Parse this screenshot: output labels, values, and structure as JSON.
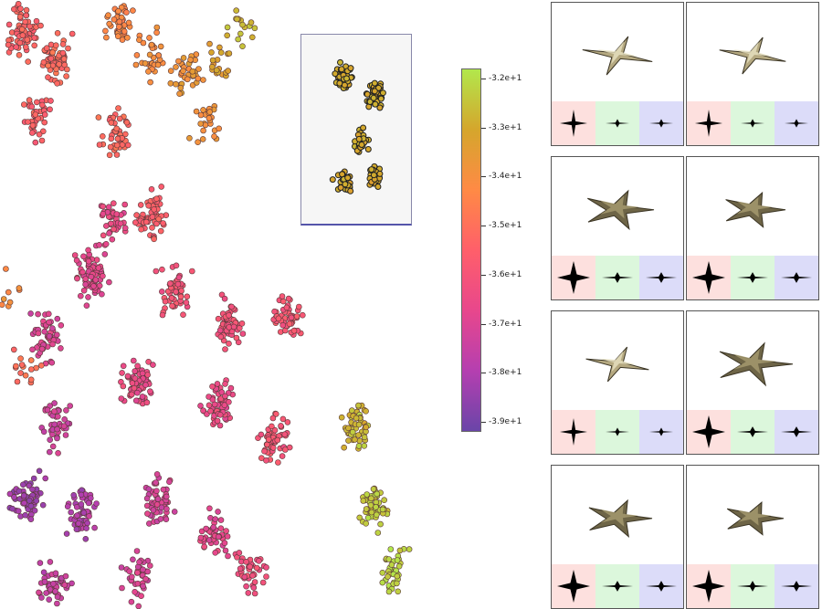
{
  "chart_data": {
    "type": "scatter",
    "title": "",
    "xlabel": "",
    "ylabel": "",
    "colorbar": {
      "min": -39.2,
      "max": -31.8,
      "ticks": [
        -32,
        -33,
        -34,
        -35,
        -36,
        -37,
        -38,
        -39
      ],
      "tick_labels": [
        "-3.2e+1",
        "-3.3e+1",
        "-3.4e+1",
        "-3.5e+1",
        "-3.6e+1",
        "-3.7e+1",
        "-3.8e+1",
        "-3.9e+1"
      ],
      "colormap": [
        "#6a45a8",
        "#b53fb0",
        "#e8478c",
        "#ff5f6a",
        "#ff8a45",
        "#d5a62c",
        "#b2e84c"
      ]
    },
    "clusters": [
      {
        "x": 5,
        "y": 95,
        "value": -35.4,
        "n": 70
      },
      {
        "x": 12,
        "y": 90,
        "value": -35.1,
        "n": 60
      },
      {
        "x": 26,
        "y": 96,
        "value": -34.2,
        "n": 45
      },
      {
        "x": 33,
        "y": 91,
        "value": -34.1,
        "n": 35
      },
      {
        "x": 41,
        "y": 88,
        "value": -33.7,
        "n": 40
      },
      {
        "x": 48,
        "y": 90,
        "value": -33.2,
        "n": 20
      },
      {
        "x": 53,
        "y": 96,
        "value": -32.6,
        "n": 15
      },
      {
        "x": 45,
        "y": 80,
        "value": -33.9,
        "n": 25
      },
      {
        "x": 8,
        "y": 80,
        "value": -35.5,
        "n": 40
      },
      {
        "x": 25,
        "y": 78,
        "value": -35.2,
        "n": 45
      },
      {
        "x": 33,
        "y": 65,
        "value": -35.6,
        "n": 65
      },
      {
        "x": 24,
        "y": 64,
        "value": -36.6,
        "n": 40
      },
      {
        "x": 20,
        "y": 55,
        "value": -36.8,
        "n": 70
      },
      {
        "x": 38,
        "y": 52,
        "value": -36.0,
        "n": 50
      },
      {
        "x": 63,
        "y": 48,
        "value": -35.9,
        "n": 50
      },
      {
        "x": 50,
        "y": 47,
        "value": -36.1,
        "n": 60
      },
      {
        "x": 10,
        "y": 45,
        "value": -37.0,
        "n": 55
      },
      {
        "x": 2,
        "y": 52,
        "value": -34.2,
        "n": 8
      },
      {
        "x": 5,
        "y": 40,
        "value": -35.0,
        "n": 15
      },
      {
        "x": 30,
        "y": 37,
        "value": -36.6,
        "n": 70
      },
      {
        "x": 48,
        "y": 34,
        "value": -36.5,
        "n": 60
      },
      {
        "x": 60,
        "y": 28,
        "value": -36.0,
        "n": 50
      },
      {
        "x": 12,
        "y": 30,
        "value": -37.4,
        "n": 40
      },
      {
        "x": 6,
        "y": 18,
        "value": -38.4,
        "n": 60
      },
      {
        "x": 18,
        "y": 16,
        "value": -38.0,
        "n": 55
      },
      {
        "x": 35,
        "y": 18,
        "value": -37.2,
        "n": 55
      },
      {
        "x": 47,
        "y": 12,
        "value": -36.8,
        "n": 45
      },
      {
        "x": 55,
        "y": 6,
        "value": -36.3,
        "n": 40
      },
      {
        "x": 12,
        "y": 4,
        "value": -37.6,
        "n": 45
      },
      {
        "x": 30,
        "y": 5,
        "value": -37.1,
        "n": 40
      },
      {
        "x": 78,
        "y": 30,
        "value": -32.6,
        "n": 50
      },
      {
        "x": 82,
        "y": 17,
        "value": -32.3,
        "n": 60
      },
      {
        "x": 86,
        "y": 6,
        "value": -32.1,
        "n": 40
      }
    ],
    "inset": {
      "type": "scatter",
      "clusters": [
        {
          "x": 35,
          "y": 80,
          "n": 40
        },
        {
          "x": 70,
          "y": 70,
          "n": 45
        },
        {
          "x": 55,
          "y": 45,
          "n": 25
        },
        {
          "x": 35,
          "y": 20,
          "n": 30
        },
        {
          "x": 70,
          "y": 25,
          "n": 25
        }
      ],
      "value": -33.0
    }
  },
  "thumbnails": [
    {
      "shape": "star-thin",
      "spikes": 4,
      "arm_len": 1.0
    },
    {
      "shape": "star-thin",
      "spikes": 4,
      "arm_len": 0.95
    },
    {
      "shape": "star-thick",
      "spikes": 5,
      "arm_len": 1.0
    },
    {
      "shape": "star-thick",
      "spikes": 5,
      "arm_len": 0.9
    },
    {
      "shape": "star-thin",
      "spikes": 4,
      "arm_len": 0.9
    },
    {
      "shape": "star-thick",
      "spikes": 5,
      "arm_len": 1.1
    },
    {
      "shape": "star-thick",
      "spikes": 5,
      "arm_len": 0.95
    },
    {
      "shape": "star-thick",
      "spikes": 5,
      "arm_len": 0.85
    }
  ],
  "colors": {
    "shape_gold": "#b5a981",
    "shape_dark": "#4b4330",
    "proj_red": "#fde0de",
    "proj_green": "#dcf7dc",
    "proj_blue": "#dcdcf9"
  }
}
